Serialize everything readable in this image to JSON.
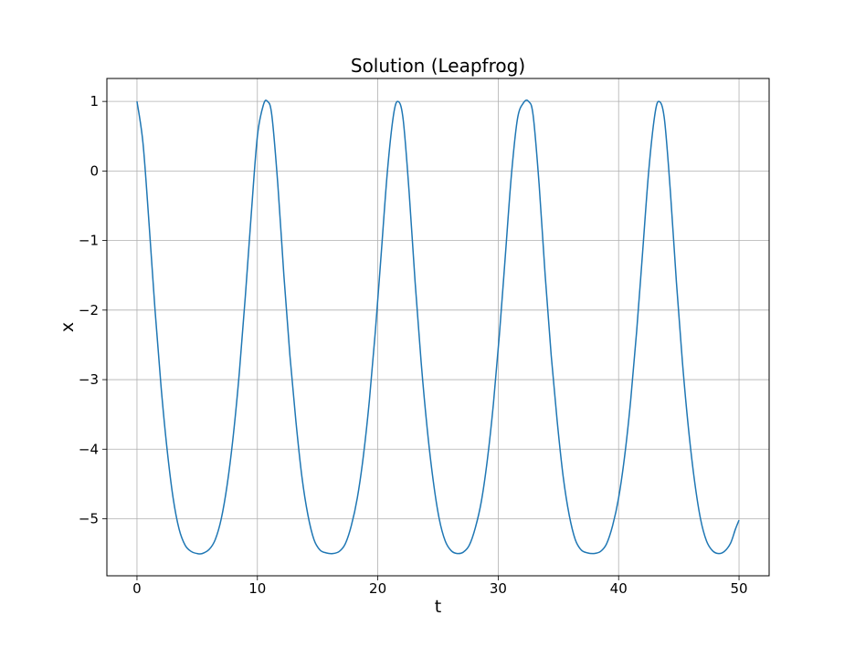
{
  "chart_data": {
    "type": "line",
    "title": "Solution (Leapfrog)",
    "xlabel": "t",
    "ylabel": "x",
    "xlim": [
      -2.5,
      52.5
    ],
    "ylim": [
      -5.82,
      1.33
    ],
    "xticks": [
      0,
      10,
      20,
      30,
      40,
      50
    ],
    "xtick_labels": [
      "0",
      "10",
      "20",
      "30",
      "40",
      "50"
    ],
    "yticks": [
      1,
      0,
      -1,
      -2,
      -3,
      -4,
      -5
    ],
    "ytick_labels": [
      "1",
      "0",
      "−1",
      "−2",
      "−3",
      "−4",
      "−5"
    ],
    "grid": true,
    "legend": "none",
    "series": [
      {
        "color": "#1f77b4",
        "x": [
          0,
          0.5,
          1,
          1.5,
          2,
          2.5,
          3,
          3.5,
          4,
          4.5,
          5,
          5.42,
          6,
          6.5,
          7,
          7.5,
          8,
          8.5,
          9,
          9.5,
          10,
          10.5,
          10.84,
          11.2,
          11.7,
          12.2,
          12.7,
          13.2,
          13.7,
          14.2,
          14.7,
          15.2,
          15.7,
          16.26,
          16.8,
          17.3,
          17.8,
          18.3,
          18.8,
          19.3,
          19.8,
          20.3,
          20.8,
          21.3,
          21.68,
          22.1,
          22.6,
          23.1,
          23.6,
          24.1,
          24.6,
          25.1,
          25.6,
          26.1,
          26.6,
          27.1,
          27.6,
          28.1,
          28.6,
          29.1,
          29.6,
          30.1,
          30.6,
          31.1,
          31.6,
          32.1,
          32.52,
          32.9,
          33.4,
          33.9,
          34.4,
          34.9,
          35.4,
          35.9,
          36.4,
          36.9,
          37.4,
          37.94,
          38.5,
          39,
          39.5,
          40,
          40.5,
          41,
          41.5,
          42,
          42.5,
          43,
          43.36,
          43.8,
          44.3,
          44.8,
          45.3,
          45.8,
          46.3,
          46.8,
          47.3,
          47.8,
          48.3,
          48.78,
          49.3,
          49.7,
          50
        ],
        "y": [
          1.0,
          0.4,
          -0.75,
          -2.0,
          -3.1,
          -4.0,
          -4.7,
          -5.15,
          -5.38,
          -5.47,
          -5.5,
          -5.5,
          -5.44,
          -5.3,
          -5.0,
          -4.5,
          -3.8,
          -2.9,
          -1.8,
          -0.6,
          0.5,
          0.95,
          1.0,
          0.8,
          -0.2,
          -1.5,
          -2.65,
          -3.6,
          -4.4,
          -4.95,
          -5.3,
          -5.45,
          -5.49,
          -5.5,
          -5.47,
          -5.36,
          -5.1,
          -4.7,
          -4.1,
          -3.3,
          -2.3,
          -1.15,
          0.0,
          0.8,
          1.0,
          0.75,
          -0.3,
          -1.6,
          -2.75,
          -3.7,
          -4.45,
          -5.0,
          -5.32,
          -5.46,
          -5.5,
          -5.48,
          -5.38,
          -5.13,
          -4.75,
          -4.15,
          -3.35,
          -2.35,
          -1.2,
          -0.05,
          0.75,
          0.98,
          1.0,
          0.8,
          -0.2,
          -1.5,
          -2.65,
          -3.6,
          -4.4,
          -4.95,
          -5.3,
          -5.45,
          -5.49,
          -5.5,
          -5.47,
          -5.36,
          -5.1,
          -4.7,
          -4.1,
          -3.3,
          -2.3,
          -1.15,
          0.0,
          0.8,
          1.0,
          0.75,
          -0.3,
          -1.6,
          -2.75,
          -3.7,
          -4.45,
          -5.0,
          -5.32,
          -5.46,
          -5.5,
          -5.47,
          -5.35,
          -5.15,
          -5.02
        ]
      }
    ]
  }
}
